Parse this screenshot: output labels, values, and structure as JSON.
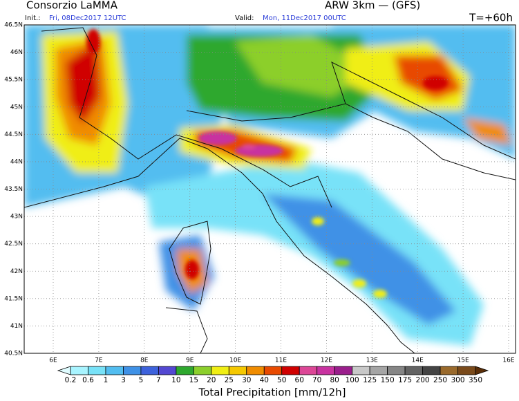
{
  "header": {
    "title": "Consorzio LaMMA",
    "model": "ARW 3km — (GFS)",
    "init_label": "Init.:",
    "init_value": "Fri, 08Dec2017 12UTC",
    "valid_label": "Valid:",
    "valid_value": "Mon, 11Dec2017 00UTC",
    "forecast_time": "T=+60h"
  },
  "map": {
    "lat_labels": [
      "46.5N",
      "46N",
      "45.5N",
      "45N",
      "44.5N",
      "44N",
      "43.5N",
      "43N",
      "42.5N",
      "42N",
      "41.5N",
      "41N",
      "40.5N"
    ],
    "lon_labels": [
      "6E",
      "7E",
      "8E",
      "9E",
      "10E",
      "11E",
      "12E",
      "13E",
      "14E",
      "15E",
      "16E"
    ]
  },
  "colorbar": {
    "title": "Total Precipitation [mm/12h]",
    "values": [
      0.2,
      0.6,
      1,
      3,
      5,
      7,
      10,
      15,
      20,
      25,
      30,
      40,
      50,
      60,
      70,
      80,
      100,
      125,
      150,
      175,
      200,
      250,
      300,
      350
    ],
    "colors": [
      "#dffcff",
      "#a8f4ff",
      "#78e2f8",
      "#52bdf0",
      "#3f91e6",
      "#3d62dc",
      "#5348d2",
      "#2ea82e",
      "#8ccf2c",
      "#f0ee14",
      "#f5c800",
      "#f08c00",
      "#e84a00",
      "#d00000",
      "#dc4696",
      "#c832a0",
      "#9a1e8c",
      "#c8c8c8",
      "#a5a5a5",
      "#858585",
      "#636363",
      "#444444",
      "#9a6a2c",
      "#7a4a1a",
      "#5a2e08"
    ]
  }
}
